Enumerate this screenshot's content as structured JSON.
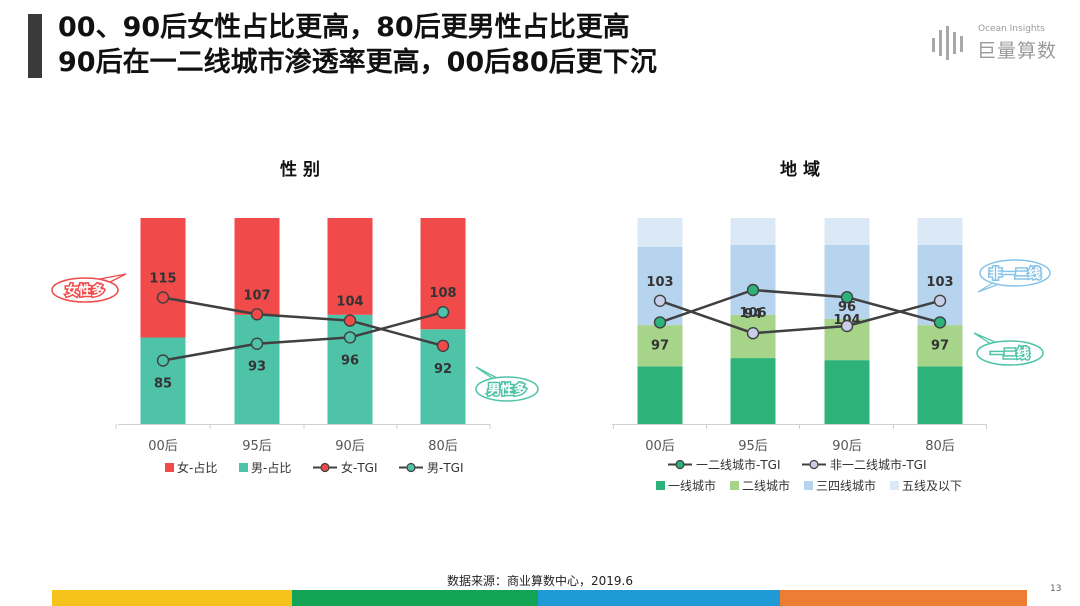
{
  "title": {
    "line1": "00、90后女性占比更高，80后更男性占比更高",
    "line2": "90后在一二线城市渗透率更高，00后80后更下沉"
  },
  "logo": {
    "small": "Ocean Insights",
    "big": "巨量算数"
  },
  "source": "数据来源：商业算数中心，2019.6",
  "page_number": "13",
  "footer_colors": [
    "#f6c31c",
    "#13a354",
    "#1f9ad6",
    "#ee7d34"
  ],
  "chart_data": [
    {
      "type": "bar",
      "subtype": "stacked-100-with-lines",
      "title": "性 别",
      "categories": [
        "00后",
        "95后",
        "90后",
        "80后"
      ],
      "ylim": [
        0,
        1
      ],
      "series": [
        {
          "name": "女-占比",
          "kind": "bar",
          "color": "#f04a4a",
          "values": [
            0.58,
            0.47,
            0.47,
            0.54
          ]
        },
        {
          "name": "男-占比",
          "kind": "bar",
          "color": "#4fc3a8",
          "values": [
            0.42,
            0.53,
            0.53,
            0.46
          ]
        },
        {
          "name": "女-TGI",
          "kind": "line",
          "color": "#f04a4a",
          "values": [
            115,
            107,
            104,
            92
          ]
        },
        {
          "name": "男-TGI",
          "kind": "line",
          "color": "#4fc3a8",
          "values": [
            85,
            93,
            96,
            108
          ]
        }
      ],
      "callouts": [
        {
          "text": "女性多",
          "color": "#f04a4a"
        },
        {
          "text": "男性多",
          "color": "#4fc3a8"
        }
      ]
    },
    {
      "type": "bar",
      "subtype": "stacked-100-with-lines",
      "title": "地 域",
      "categories": [
        "00后",
        "95后",
        "90后",
        "80后"
      ],
      "ylim": [
        0,
        1
      ],
      "series": [
        {
          "name": "一线城市",
          "kind": "bar",
          "color": "#2db37a",
          "values": [
            0.28,
            0.32,
            0.31,
            0.28
          ]
        },
        {
          "name": "二线城市",
          "kind": "bar",
          "color": "#a6d58a",
          "values": [
            0.2,
            0.21,
            0.2,
            0.2
          ]
        },
        {
          "name": "三四线城市",
          "kind": "bar",
          "color": "#b7d4ee",
          "values": [
            0.38,
            0.34,
            0.36,
            0.39
          ]
        },
        {
          "name": "五线及以下",
          "kind": "bar",
          "color": "#dbe8f5",
          "values": [
            0.14,
            0.13,
            0.13,
            0.13
          ]
        },
        {
          "name": "一二线城市-TGI",
          "kind": "line",
          "color": "#2db37a",
          "values": [
            97,
            106,
            104,
            97
          ]
        },
        {
          "name": "非一二线城市-TGI",
          "kind": "line",
          "color": "#c8cde8",
          "values": [
            103,
            94,
            96,
            103
          ]
        }
      ],
      "callouts": [
        {
          "text": "非一二线",
          "color": "#86c3e8"
        },
        {
          "text": "一二线",
          "color": "#4fc3a8"
        }
      ]
    }
  ]
}
